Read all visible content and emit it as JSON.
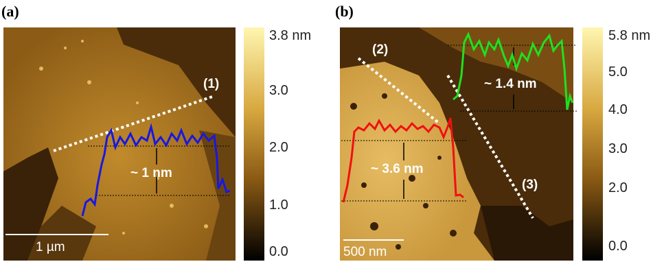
{
  "panels": [
    {
      "label": "(a)",
      "colorbar": [
        "3.8 nm",
        "3.0",
        "2.0",
        "1.0",
        "0.0"
      ],
      "line_label": "(1)",
      "step_label": "~ 1 nm",
      "scale_bar": "1 µm"
    },
    {
      "label": "(b)",
      "colorbar": [
        "5.8 nm",
        "5.0",
        "4.0",
        "3.0",
        "2.0",
        "0.0"
      ],
      "line_labels": [
        "(2)",
        "(3)"
      ],
      "step_labels": [
        "~ 3.6 nm",
        "~ 1.4 nm"
      ],
      "scale_bar": "500 nm"
    }
  ]
}
